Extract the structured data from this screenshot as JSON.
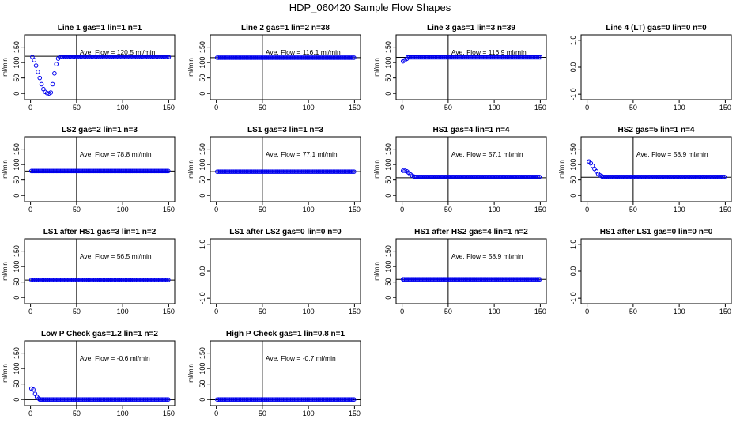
{
  "figure_title": "HDP_060420  Sample Flow Shapes",
  "chart_data": [
    {
      "type": "scatter",
      "title": "Line 1 gas=1 lin=1 n=1",
      "ylabel": "ml/min",
      "xlim": [
        0,
        150
      ],
      "xticks": [
        0,
        50,
        100,
        150
      ],
      "ylim": [
        -20,
        190
      ],
      "yticks": [
        0,
        50,
        100,
        150
      ],
      "annotation": "Ave. Flow =  120.5  ml/min",
      "vline_x": 50,
      "hline_y": 120.5,
      "points": [
        [
          2,
          118
        ],
        [
          4,
          108
        ],
        [
          6,
          90
        ],
        [
          8,
          70
        ],
        [
          10,
          50
        ],
        [
          12,
          30
        ],
        [
          14,
          14
        ],
        [
          16,
          5
        ],
        [
          18,
          1
        ],
        [
          20,
          0
        ],
        [
          22,
          3
        ],
        [
          24,
          30
        ],
        [
          26,
          65
        ],
        [
          28,
          95
        ],
        [
          30,
          113
        ],
        [
          32,
          118
        ]
      ],
      "plateau": {
        "from": 33,
        "to": 150,
        "step": 1.5,
        "y": 118
      }
    },
    {
      "type": "scatter",
      "title": "Line 2 gas=1 lin=2 n=38",
      "ylabel": "ml/min",
      "xlim": [
        0,
        150
      ],
      "xticks": [
        0,
        50,
        100,
        150
      ],
      "ylim": [
        -20,
        190
      ],
      "yticks": [
        0,
        50,
        100,
        150
      ],
      "annotation": "Ave. Flow =  116.1  ml/min",
      "vline_x": 50,
      "hline_y": 116.1,
      "points": [],
      "plateau": {
        "from": 1,
        "to": 150,
        "step": 1.5,
        "y": 116
      }
    },
    {
      "type": "scatter",
      "title": "Line 3 gas=1 lin=3 n=39",
      "ylabel": "ml/min",
      "xlim": [
        0,
        150
      ],
      "xticks": [
        0,
        50,
        100,
        150
      ],
      "ylim": [
        -20,
        190
      ],
      "yticks": [
        0,
        50,
        100,
        150
      ],
      "annotation": "Ave. Flow =  116.9  ml/min",
      "vline_x": 50,
      "hline_y": 116.9,
      "points": [
        [
          1,
          104
        ],
        [
          3,
          108
        ],
        [
          5,
          112
        ]
      ],
      "plateau": {
        "from": 6,
        "to": 150,
        "step": 1.5,
        "y": 117
      }
    },
    {
      "type": "scatter",
      "title": "Line 4 (LT) gas=0 lin=0 n=0",
      "ylabel": "",
      "xlim": [
        0,
        150
      ],
      "xticks": [
        0,
        50,
        100,
        150
      ],
      "ylim": [
        -1.2,
        1.2
      ],
      "yticks": [
        -1.0,
        0.0,
        1.0
      ],
      "ytick_labels": [
        "-1.0",
        "0.0",
        "1.0"
      ],
      "annotation": "",
      "vline_x": null,
      "hline_y": null,
      "points": [],
      "plateau": null
    },
    {
      "type": "scatter",
      "title": "LS2 gas=2 lin=1 n=3",
      "ylabel": "ml/min",
      "xlim": [
        0,
        150
      ],
      "xticks": [
        0,
        50,
        100,
        150
      ],
      "ylim": [
        -20,
        190
      ],
      "yticks": [
        0,
        50,
        100,
        150
      ],
      "annotation": "Ave. Flow =  78.8  ml/min",
      "vline_x": 50,
      "hline_y": 78.8,
      "points": [],
      "plateau": {
        "from": 1,
        "to": 150,
        "step": 1.5,
        "y": 79
      }
    },
    {
      "type": "scatter",
      "title": "LS1 gas=3 lin=1 n=3",
      "ylabel": "ml/min",
      "xlim": [
        0,
        150
      ],
      "xticks": [
        0,
        50,
        100,
        150
      ],
      "ylim": [
        -20,
        190
      ],
      "yticks": [
        0,
        50,
        100,
        150
      ],
      "annotation": "Ave. Flow =  77.1  ml/min",
      "vline_x": 50,
      "hline_y": 77.1,
      "points": [],
      "plateau": {
        "from": 1,
        "to": 150,
        "step": 1.5,
        "y": 77
      }
    },
    {
      "type": "scatter",
      "title": "HS1 gas=4 lin=1 n=4",
      "ylabel": "ml/min",
      "xlim": [
        0,
        150
      ],
      "xticks": [
        0,
        50,
        100,
        150
      ],
      "ylim": [
        -20,
        190
      ],
      "yticks": [
        0,
        50,
        100,
        150
      ],
      "annotation": "Ave. Flow =  57.1  ml/min",
      "vline_x": 50,
      "hline_y": 57.1,
      "points": [
        [
          1,
          80
        ],
        [
          3,
          80
        ],
        [
          5,
          78
        ],
        [
          7,
          74
        ],
        [
          9,
          68
        ],
        [
          11,
          64
        ],
        [
          13,
          61
        ]
      ],
      "plateau": {
        "from": 14,
        "to": 150,
        "step": 1.5,
        "y": 60
      }
    },
    {
      "type": "scatter",
      "title": "HS2 gas=5 lin=1 n=4",
      "ylabel": "ml/min",
      "xlim": [
        0,
        150
      ],
      "xticks": [
        0,
        50,
        100,
        150
      ],
      "ylim": [
        -20,
        190
      ],
      "yticks": [
        0,
        50,
        100,
        150
      ],
      "annotation": "Ave. Flow =  58.9  ml/min",
      "vline_x": 50,
      "hline_y": 58.9,
      "points": [
        [
          2,
          110
        ],
        [
          4,
          104
        ],
        [
          6,
          96
        ],
        [
          8,
          86
        ],
        [
          10,
          78
        ],
        [
          12,
          70
        ],
        [
          14,
          65
        ],
        [
          16,
          62
        ]
      ],
      "plateau": {
        "from": 17,
        "to": 150,
        "step": 1.5,
        "y": 60
      }
    },
    {
      "type": "scatter",
      "title": "LS1 after HS1 gas=3 lin=1 n=2",
      "ylabel": "ml/min",
      "xlim": [
        0,
        150
      ],
      "xticks": [
        0,
        50,
        100,
        150
      ],
      "ylim": [
        -20,
        190
      ],
      "yticks": [
        0,
        50,
        100,
        150
      ],
      "annotation": "Ave. Flow =  56.5  ml/min",
      "vline_x": 50,
      "hline_y": 56.5,
      "points": [],
      "plateau": {
        "from": 1,
        "to": 150,
        "step": 1.5,
        "y": 57
      }
    },
    {
      "type": "scatter",
      "title": "LS1 after LS2 gas=0 lin=0 n=0",
      "ylabel": "",
      "xlim": [
        0,
        150
      ],
      "xticks": [
        0,
        50,
        100,
        150
      ],
      "ylim": [
        -1.2,
        1.2
      ],
      "yticks": [
        -1.0,
        0.0,
        1.0
      ],
      "ytick_labels": [
        "-1.0",
        "0.0",
        "1.0"
      ],
      "annotation": "",
      "vline_x": null,
      "hline_y": null,
      "points": [],
      "plateau": null
    },
    {
      "type": "scatter",
      "title": "HS1 after HS2 gas=4 lin=1 n=2",
      "ylabel": "ml/min",
      "xlim": [
        0,
        150
      ],
      "xticks": [
        0,
        50,
        100,
        150
      ],
      "ylim": [
        -20,
        190
      ],
      "yticks": [
        0,
        50,
        100,
        150
      ],
      "annotation": "Ave. Flow =  58.9  ml/min",
      "vline_x": 50,
      "hline_y": 58.9,
      "points": [],
      "plateau": {
        "from": 1,
        "to": 150,
        "step": 1.5,
        "y": 59
      }
    },
    {
      "type": "scatter",
      "title": "HS1 after LS1 gas=0 lin=0 n=0",
      "ylabel": "",
      "xlim": [
        0,
        150
      ],
      "xticks": [
        0,
        50,
        100,
        150
      ],
      "ylim": [
        -1.2,
        1.2
      ],
      "yticks": [
        -1.0,
        0.0,
        1.0
      ],
      "ytick_labels": [
        "-1.0",
        "0.0",
        "1.0"
      ],
      "annotation": "",
      "vline_x": null,
      "hline_y": null,
      "points": [],
      "plateau": null
    },
    {
      "type": "scatter",
      "title": "Low P Check gas=1.2 lin=1 n=2",
      "ylabel": "ml/min",
      "xlim": [
        0,
        150
      ],
      "xticks": [
        0,
        50,
        100,
        150
      ],
      "ylim": [
        -20,
        190
      ],
      "yticks": [
        0,
        50,
        100,
        150
      ],
      "annotation": "Ave. Flow =  -0.6  ml/min",
      "vline_x": 50,
      "hline_y": -0.6,
      "points": [
        [
          1,
          35
        ],
        [
          3,
          32
        ],
        [
          5,
          18
        ],
        [
          7,
          8
        ],
        [
          9,
          3
        ]
      ],
      "plateau": {
        "from": 10,
        "to": 150,
        "step": 1.5,
        "y": 0
      }
    },
    {
      "type": "scatter",
      "title": "High P Check gas=1 lin=0.8 n=1",
      "ylabel": "ml/min",
      "xlim": [
        0,
        150
      ],
      "xticks": [
        0,
        50,
        100,
        150
      ],
      "ylim": [
        -20,
        190
      ],
      "yticks": [
        0,
        50,
        100,
        150
      ],
      "annotation": "Ave. Flow =  -0.7  ml/min",
      "vline_x": 50,
      "hline_y": -0.7,
      "points": [],
      "plateau": {
        "from": 1,
        "to": 150,
        "step": 1.5,
        "y": 0
      }
    }
  ],
  "colors": {
    "points": "#0000ee",
    "axis": "#000000"
  }
}
